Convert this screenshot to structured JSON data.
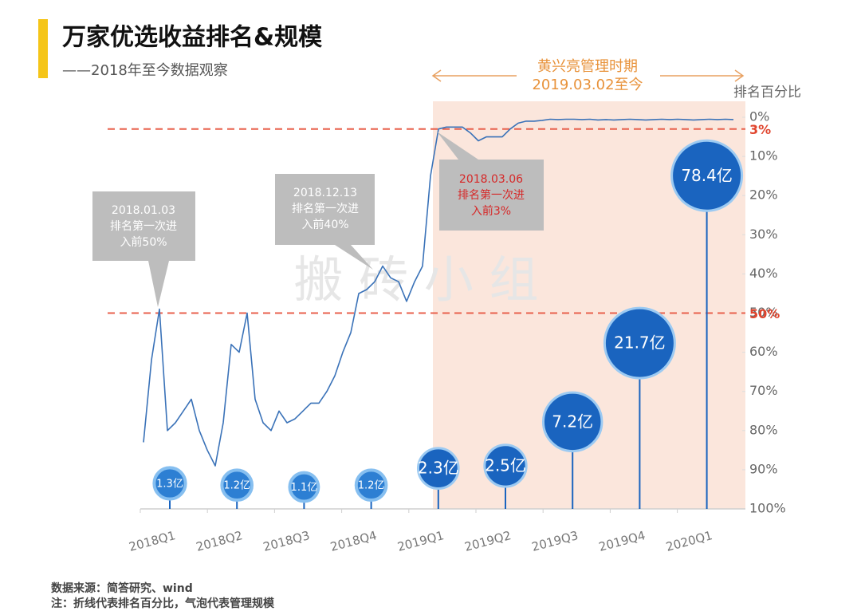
{
  "chart_data": {
    "type": "line",
    "title": "万家优选收益排名&规模",
    "subtitle": "——2018年至今数据观察",
    "y_label": "排名百分比",
    "y_inverted": true,
    "categories": [
      "2018Q1",
      "2018Q2",
      "2018Q3",
      "2018Q4",
      "2019Q1",
      "2019Q2",
      "2019Q3",
      "2019Q4",
      "2020Q1"
    ],
    "ylim": [
      0,
      100
    ],
    "yticks": [
      {
        "value": 0,
        "label": "0%"
      },
      {
        "value": 10,
        "label": "10%"
      },
      {
        "value": 20,
        "label": "20%"
      },
      {
        "value": 30,
        "label": "30%"
      },
      {
        "value": 40,
        "label": "40%"
      },
      {
        "value": 50,
        "label": "50%"
      },
      {
        "value": 60,
        "label": "60%"
      },
      {
        "value": 70,
        "label": "70%"
      },
      {
        "value": 80,
        "label": "80%"
      },
      {
        "value": 90,
        "label": "90%"
      },
      {
        "value": 100,
        "label": "100%"
      }
    ],
    "line": {
      "color": "#3a72b8",
      "values": [
        83,
        62,
        49,
        80,
        78,
        75,
        72,
        80,
        85,
        89,
        78,
        58,
        60,
        50,
        72,
        78,
        80,
        75,
        78,
        77,
        75,
        73,
        73,
        70,
        66,
        60,
        55,
        45,
        44,
        42,
        38,
        41,
        42,
        47,
        42,
        38,
        15,
        3,
        2.5,
        2.5,
        2.5,
        4,
        6,
        5,
        5,
        5,
        3,
        1.5,
        1,
        1,
        0.8,
        0.5,
        0.6,
        0.5,
        0.5,
        0.6,
        0.5,
        0.7,
        0.6,
        0.7,
        0.6,
        0.5,
        0.6,
        0.7,
        0.6,
        0.5,
        0.6,
        0.5,
        0.6,
        0.7,
        0.6,
        0.5,
        0.6,
        0.5,
        0.6
      ]
    },
    "bubbles": {
      "color": "#1a64bf",
      "values": [
        1.3,
        1.2,
        1.1,
        1.2,
        2.3,
        2.5,
        7.2,
        21.7,
        78.4
      ],
      "value_labels": [
        "1.3亿",
        "1.2亿",
        "1.1亿",
        "1.2亿",
        "2.3亿",
        "2.5亿",
        "7.2亿",
        "21.7亿",
        "78.4亿"
      ]
    },
    "reference_lines": [
      {
        "value": 3,
        "label": "3%"
      },
      {
        "value": 50,
        "label": "50%"
      }
    ],
    "period": {
      "title": "黄兴亮管理时期",
      "subtitle": "2019.03.02至今"
    },
    "annotations": [
      {
        "lines": [
          "2018.01.03",
          "排名第一次进",
          "入前50%"
        ]
      },
      {
        "lines": [
          "2018.12.13",
          "排名第一次进",
          "入前40%"
        ]
      },
      {
        "lines": [
          "2018.03.06",
          "排名第一次进",
          "入前3%"
        ]
      }
    ],
    "watermark": "搬 砖 小 组",
    "notes": [
      "数据来源：简答研究、wind",
      "注：折线代表排名百分比，气泡代表管理规模"
    ]
  }
}
